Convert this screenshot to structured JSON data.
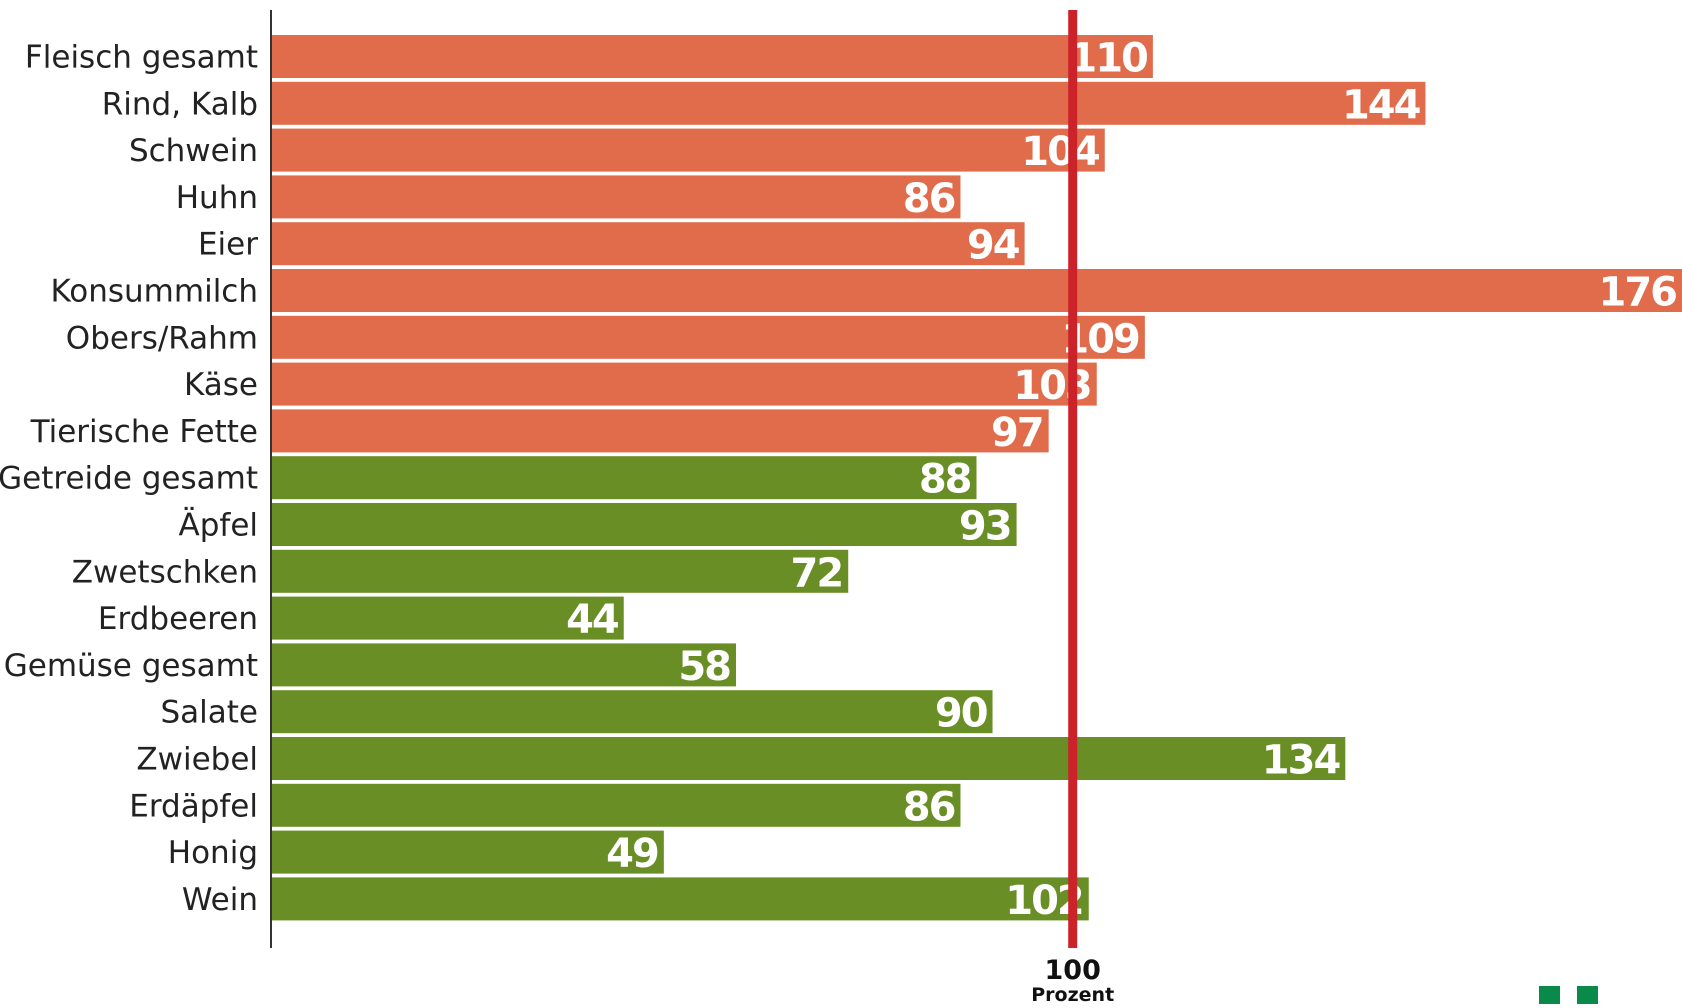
{
  "chart_data": {
    "type": "bar",
    "orientation": "horizontal",
    "categories": [
      "Fleisch gesamt",
      "Rind, Kalb",
      "Schwein",
      "Huhn",
      "Eier",
      "Konsummilch",
      "Obers/Rahm",
      "Käse",
      "Tierische Fette",
      "Getreide gesamt",
      "Äpfel",
      "Zwetschken",
      "Erdbeeren",
      "Gemüse gesamt",
      "Salate",
      "Zwiebel",
      "Erdäpfel",
      "Honig",
      "Wein"
    ],
    "values": [
      110,
      144,
      104,
      86,
      94,
      176,
      109,
      103,
      97,
      88,
      93,
      72,
      44,
      58,
      90,
      134,
      86,
      49,
      102
    ],
    "group": [
      "animal",
      "animal",
      "animal",
      "animal",
      "animal",
      "animal",
      "animal",
      "animal",
      "animal",
      "plant",
      "plant",
      "plant",
      "plant",
      "plant",
      "plant",
      "plant",
      "plant",
      "plant",
      "plant"
    ],
    "colors": {
      "animal": "#E06C4B",
      "plant": "#6A8E26",
      "reference_line": "#CC2229",
      "axis": "#333333"
    },
    "xlim": [
      0,
      176
    ],
    "reference_line": {
      "value": 100,
      "label_value": "100",
      "label_unit": "Prozent"
    },
    "title": "",
    "xlabel": "",
    "ylabel": "",
    "grid": false,
    "legend": "none"
  },
  "decoration": {
    "logo_color": "#0A8A4A"
  }
}
